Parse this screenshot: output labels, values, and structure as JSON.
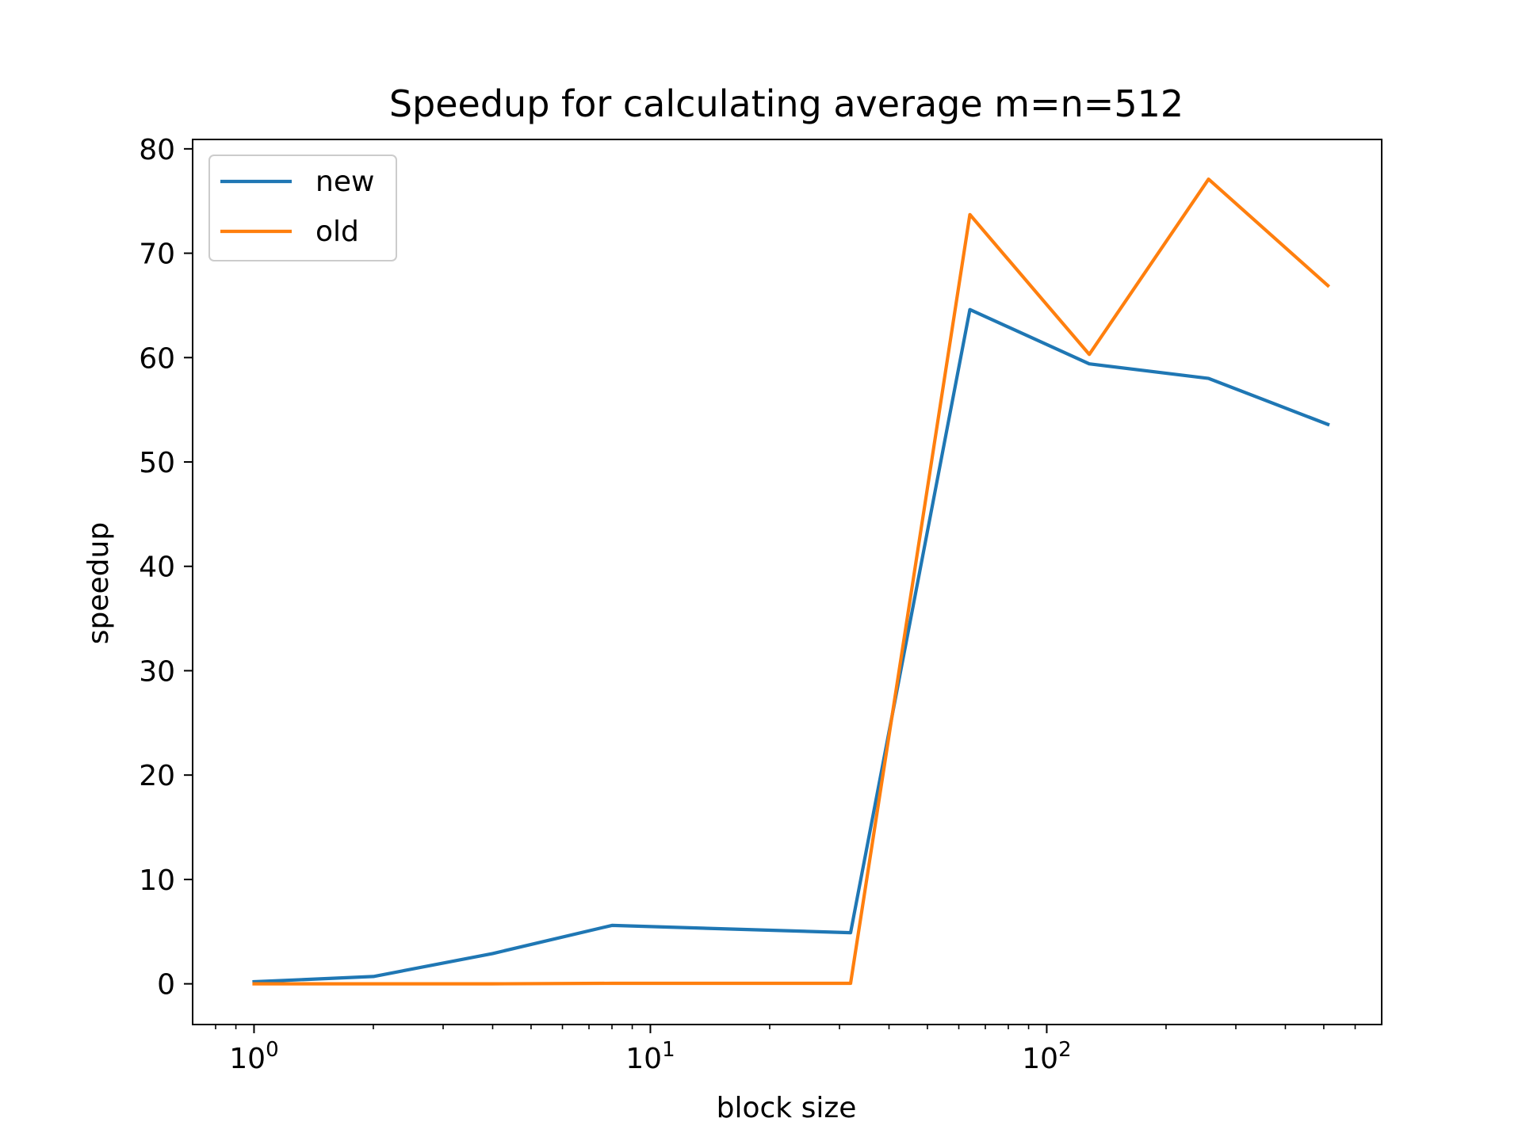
{
  "chart_data": {
    "type": "line",
    "title": "Speedup for calculating average m=n=512",
    "xlabel": "block size",
    "ylabel": "speedup",
    "xscale": "log",
    "xlim": [
      0.7,
      700
    ],
    "ylim": [
      -3.9,
      80.9
    ],
    "xticks": [
      {
        "base": "10",
        "exp": "0",
        "value": 1
      },
      {
        "base": "10",
        "exp": "1",
        "value": 10
      },
      {
        "base": "10",
        "exp": "2",
        "value": 100
      }
    ],
    "yticks": [
      0,
      10,
      20,
      30,
      40,
      50,
      60,
      70,
      80
    ],
    "x": [
      1,
      2,
      4,
      8,
      32,
      64,
      128,
      256,
      512
    ],
    "series": [
      {
        "name": "new",
        "color": "#1f77b4",
        "values": [
          0.2,
          0.7,
          2.9,
          5.6,
          4.9,
          64.6,
          59.4,
          58.0,
          53.6
        ]
      },
      {
        "name": "old",
        "color": "#ff7f0e",
        "values": [
          0.0,
          0.0,
          0.0,
          0.05,
          0.05,
          73.7,
          60.3,
          77.1,
          66.9
        ]
      }
    ],
    "legend": "upper left",
    "grid": false
  }
}
